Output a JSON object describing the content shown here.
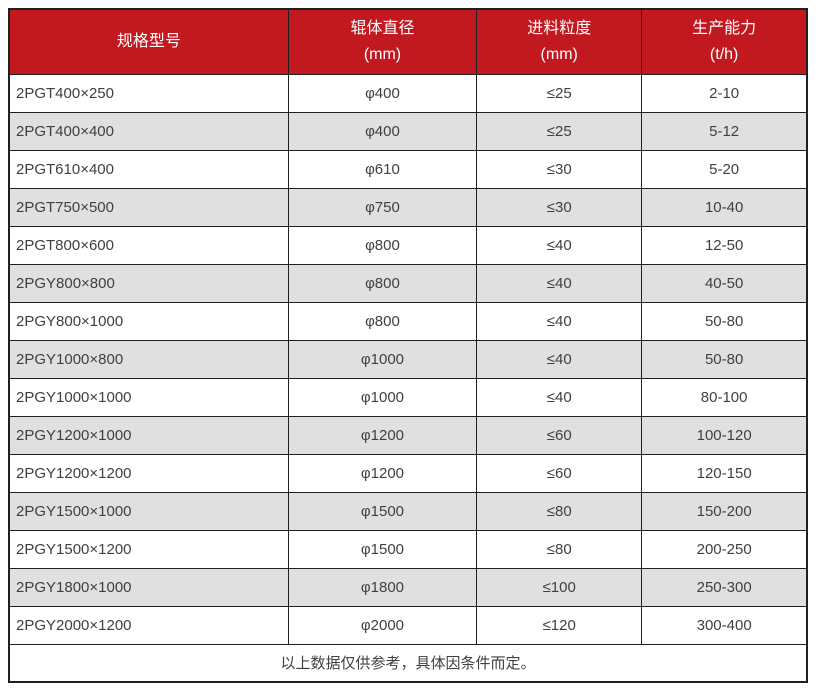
{
  "chart_data": {
    "type": "table",
    "columns": [
      {
        "label": "规格型号",
        "unit": ""
      },
      {
        "label": "辊体直径",
        "unit": "(mm)"
      },
      {
        "label": "进料粒度",
        "unit": "(mm)"
      },
      {
        "label": "生产能力",
        "unit": "(t/h)"
      }
    ],
    "rows": [
      [
        "2PGT400×250",
        "φ400",
        "≤25",
        "2-10"
      ],
      [
        "2PGT400×400",
        "φ400",
        "≤25",
        "5-12"
      ],
      [
        "2PGT610×400",
        "φ610",
        "≤30",
        "5-20"
      ],
      [
        "2PGT750×500",
        "φ750",
        "≤30",
        "10-40"
      ],
      [
        "2PGT800×600",
        "φ800",
        "≤40",
        "12-50"
      ],
      [
        "2PGY800×800",
        "φ800",
        "≤40",
        "40-50"
      ],
      [
        "2PGY800×1000",
        "φ800",
        "≤40",
        "50-80"
      ],
      [
        "2PGY1000×800",
        "φ1000",
        "≤40",
        "50-80"
      ],
      [
        "2PGY1000×1000",
        "φ1000",
        "≤40",
        "80-100"
      ],
      [
        "2PGY1200×1000",
        "φ1200",
        "≤60",
        "100-120"
      ],
      [
        "2PGY1200×1200",
        "φ1200",
        "≤60",
        "120-150"
      ],
      [
        "2PGY1500×1000",
        "φ1500",
        "≤80",
        "150-200"
      ],
      [
        "2PGY1500×1200",
        "φ1500",
        "≤80",
        "200-250"
      ],
      [
        "2PGY1800×1000",
        "φ1800",
        "≤100",
        "250-300"
      ],
      [
        "2PGY2000×1200",
        "φ2000",
        "≤120",
        "300-400"
      ]
    ],
    "footnote": "以上数据仅供参考，具体因条件而定。"
  },
  "colors": {
    "header_bg": "#c1191f",
    "header_text": "#ffffff",
    "row_alt_bg": "#e0e0e0",
    "body_text": "#404040",
    "border": "#1f1f1f"
  }
}
